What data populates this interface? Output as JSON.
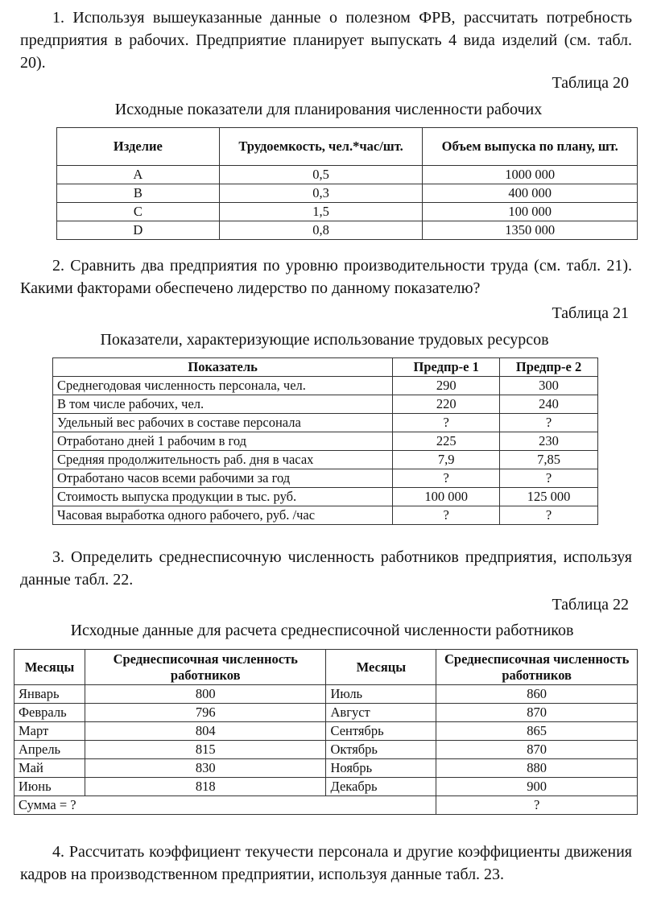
{
  "task1": {
    "text": "1. Используя вышеуказанные данные о полезном ФРВ, рассчитать потребность предприятия в рабочих. Предприятие планирует выпускать 4 вида изделий (см. табл. 20).",
    "table_number": "Таблица 20",
    "caption": "Исходные показатели для планирования численности рабочих",
    "headers": [
      "Изделие",
      "Трудоемкость, чел.*час/шт.",
      "Объем выпуска по плану, шт."
    ],
    "rows": [
      [
        "A",
        "0,5",
        "1000 000"
      ],
      [
        "B",
        "0,3",
        "400 000"
      ],
      [
        "C",
        "1,5",
        "100 000"
      ],
      [
        "D",
        "0,8",
        "1350 000"
      ]
    ]
  },
  "task2": {
    "text": "2. Сравнить два предприятия по уровню производительности труда (см. табл. 21). Какими факторами обеспечено лидерство по данному показателю?",
    "table_number": "Таблица 21",
    "caption": "Показатели, характеризующие использование трудовых ресурсов",
    "headers": [
      "Показатель",
      "Предпр-е 1",
      "Предпр-е 2"
    ],
    "rows": [
      [
        "Среднегодовая численность персонала, чел.",
        "290",
        "300"
      ],
      [
        "В том числе рабочих, чел.",
        "220",
        "240"
      ],
      [
        "Удельный вес рабочих в составе персонала",
        "?",
        "?"
      ],
      [
        "Отработано дней 1 рабочим в год",
        "225",
        "230"
      ],
      [
        "Средняя продолжительность раб. дня в часах",
        "7,9",
        "7,85"
      ],
      [
        "Отработано часов всеми рабочими за год",
        "?",
        "?"
      ],
      [
        "Стоимость выпуска продукции в тыс. руб.",
        "100 000",
        "125 000"
      ],
      [
        "Часовая выработка одного рабочего, руб. /час",
        "?",
        "?"
      ]
    ]
  },
  "task3": {
    "text": "3. Определить среднесписочную численность работников предприятия, используя данные табл. 22.",
    "table_number": "Таблица 22",
    "caption": "Исходные данные для расчета среднесписочной численности работников",
    "headers": [
      "Месяцы",
      "Среднесписочная численность работников",
      "Месяцы",
      "Среднесписочная численность работников"
    ],
    "rows": [
      [
        "Январь",
        "800",
        "Июль",
        "860"
      ],
      [
        "Февраль",
        "796",
        "Август",
        "870"
      ],
      [
        "Март",
        "804",
        "Сентябрь",
        "865"
      ],
      [
        "Апрель",
        "815",
        "Октябрь",
        "870"
      ],
      [
        "Май",
        "830",
        "Ноябрь",
        "880"
      ],
      [
        "Июнь",
        "818",
        "Декабрь",
        "900"
      ]
    ],
    "sum_label": "Сумма = ?",
    "sum_value": "?"
  },
  "task4": {
    "text": "4. Рассчитать коэффициент текучести персонала и другие коэффициенты движения кадров на производственном предприятии, используя данные табл. 23."
  }
}
